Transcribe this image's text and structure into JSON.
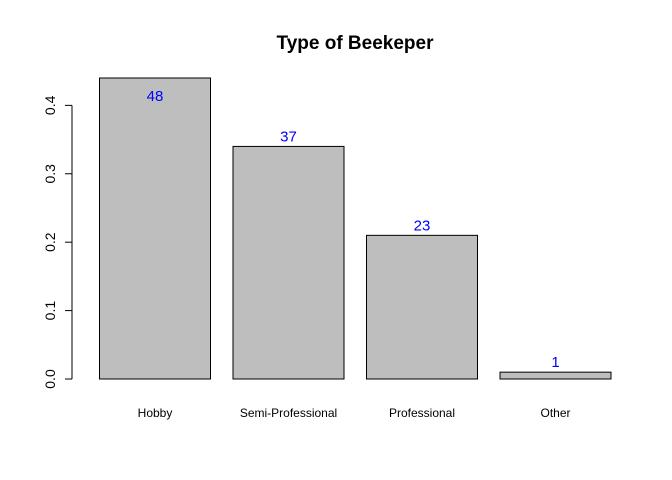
{
  "chart_data": {
    "type": "bar",
    "title": "Type of Beekeper",
    "categories": [
      "Hobby",
      "Semi-Professional",
      "Professional",
      "Other"
    ],
    "values": [
      0.44,
      0.34,
      0.21,
      0.01
    ],
    "data_labels": [
      "48",
      "37",
      "23",
      "1"
    ],
    "xlabel": "",
    "ylabel": "",
    "ylim": [
      0,
      0.44
    ],
    "yticks": [
      0.0,
      0.1,
      0.2,
      0.3,
      0.4
    ],
    "ytick_labels": [
      "0.0",
      "0.1",
      "0.2",
      "0.3",
      "0.4"
    ],
    "grid": false,
    "legend": "none",
    "colors": {
      "bar_fill": "#bebebe",
      "bar_stroke": "#000000",
      "data_label": "#0000ff",
      "axis": "#000000"
    }
  }
}
